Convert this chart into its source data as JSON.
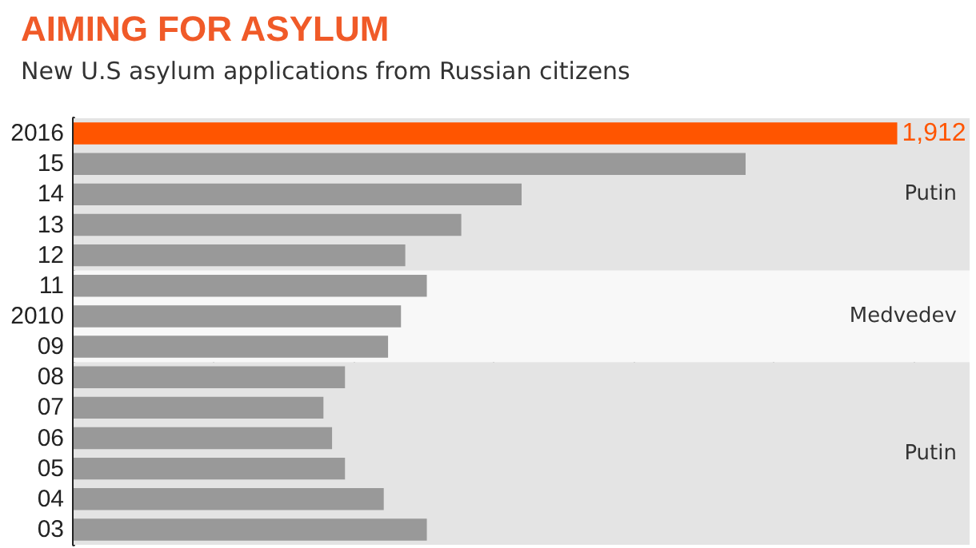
{
  "chart_data": {
    "type": "bar",
    "orientation": "horizontal",
    "title": "AIMING FOR ASYLUM",
    "subtitle": "New U.S asylum applications from Russian citizens",
    "categories": [
      "2016",
      "15",
      "14",
      "13",
      "12",
      "11",
      "2010",
      "09",
      "08",
      "07",
      "06",
      "05",
      "04",
      "03"
    ],
    "values": [
      1912,
      1560,
      1040,
      900,
      770,
      820,
      760,
      730,
      630,
      580,
      600,
      630,
      720,
      820
    ],
    "colors": [
      "#ff5500",
      "#999999",
      "#999999",
      "#999999",
      "#999999",
      "#999999",
      "#999999",
      "#999999",
      "#999999",
      "#999999",
      "#999999",
      "#999999",
      "#999999",
      "#999999"
    ],
    "value_labels": [
      "1,912",
      null,
      null,
      null,
      null,
      null,
      null,
      null,
      null,
      null,
      null,
      null,
      null,
      null
    ],
    "xlim": [
      0,
      2080
    ],
    "xticks": [
      {
        "value": 325,
        "label": null
      },
      {
        "value": 650,
        "label": null
      },
      {
        "value": 975,
        "label": null
      },
      {
        "value": 1300,
        "label": null
      },
      {
        "value": 1625,
        "label": null
      },
      {
        "value": 1950,
        "label": null
      }
    ],
    "tick_labels": "y",
    "grid": "x",
    "bands": [
      {
        "axis": "y",
        "from": "2016",
        "to": "12",
        "label": "Putin",
        "color": "#e4e4e4"
      },
      {
        "axis": "y",
        "from": "11",
        "to": "09",
        "label": "Medvedev",
        "color": "#f8f8f8"
      },
      {
        "axis": "y",
        "from": "08",
        "to": "03",
        "label": "Putin",
        "color": "#e4e4e4"
      }
    ]
  }
}
